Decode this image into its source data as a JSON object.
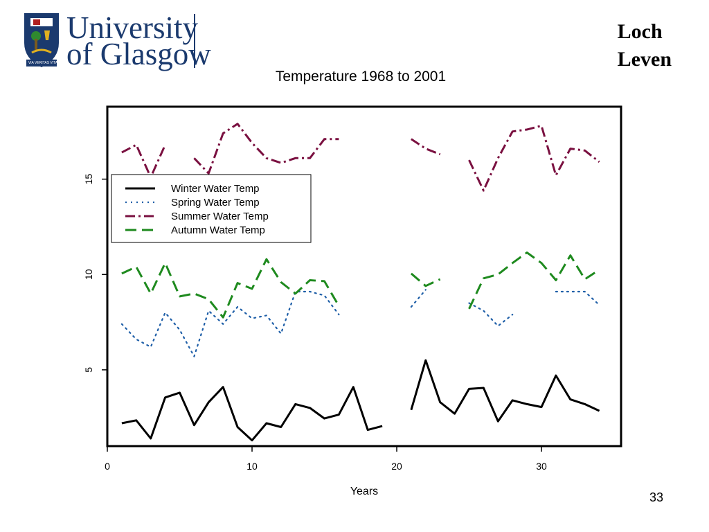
{
  "header": {
    "logo_line1": "University",
    "logo_line2": "of Glasgow",
    "logo_motto": "VIA VERITAS VITA",
    "slide_title_line1": "Loch",
    "slide_title_line2": "Leven"
  },
  "footer": {
    "page_number": "33"
  },
  "chart_data": {
    "type": "line",
    "title": "Temperature 1968 to 2001",
    "xlabel": "Years",
    "ylabel": "",
    "xlim": [
      0,
      35.5
    ],
    "ylim": [
      1.0,
      18.8
    ],
    "xticks": [
      0,
      10,
      20,
      30
    ],
    "yticks": [
      5,
      10,
      15
    ],
    "grid": false,
    "legend_position": "top-left",
    "series": [
      {
        "name": "Winter Water Temp",
        "style": "solid",
        "color": "#000000",
        "x": [
          1,
          2,
          3,
          4,
          5,
          6,
          7,
          8,
          9,
          10,
          11,
          12,
          13,
          14,
          15,
          16,
          17,
          18,
          19,
          20,
          21,
          22,
          23,
          24,
          25,
          26,
          27,
          28,
          29,
          30,
          31,
          32,
          33,
          34
        ],
        "y": [
          2.2,
          2.35,
          1.4,
          3.55,
          3.8,
          2.1,
          3.3,
          4.1,
          2.0,
          1.3,
          2.2,
          2.0,
          3.2,
          3.0,
          2.45,
          2.65,
          4.1,
          1.85,
          2.05,
          null,
          2.9,
          5.5,
          3.3,
          2.7,
          4.0,
          4.05,
          2.3,
          3.4,
          3.2,
          3.05,
          4.7,
          3.45,
          3.2,
          2.85
        ]
      },
      {
        "name": "Spring Water Temp",
        "style": "dotted",
        "color": "#1f5fa8",
        "x": [
          1,
          2,
          3,
          4,
          5,
          6,
          7,
          8,
          9,
          10,
          11,
          12,
          13,
          14,
          15,
          16,
          17,
          18,
          19,
          20,
          21,
          22,
          23,
          24,
          25,
          26,
          27,
          28,
          29,
          30,
          31,
          32,
          33,
          34
        ],
        "y": [
          7.4,
          6.6,
          6.2,
          8.0,
          7.1,
          5.7,
          8.1,
          7.4,
          8.3,
          7.7,
          7.85,
          6.9,
          9.1,
          9.1,
          8.9,
          7.9,
          null,
          null,
          null,
          null,
          8.3,
          9.2,
          null,
          null,
          8.5,
          8.1,
          7.3,
          7.9,
          null,
          null,
          9.1,
          9.1,
          9.1,
          8.4
        ]
      },
      {
        "name": "Summer Water Temp",
        "style": "dashdot",
        "color": "#7a1040",
        "x": [
          1,
          2,
          3,
          4,
          5,
          6,
          7,
          8,
          9,
          10,
          11,
          12,
          13,
          14,
          15,
          16,
          17,
          18,
          19,
          20,
          21,
          22,
          23,
          24,
          25,
          26,
          27,
          28,
          29,
          30,
          31,
          32,
          33,
          34
        ],
        "y": [
          16.4,
          16.8,
          15.1,
          16.8,
          null,
          16.1,
          15.3,
          17.4,
          17.9,
          16.9,
          16.1,
          15.85,
          16.1,
          16.1,
          17.1,
          17.1,
          null,
          null,
          null,
          null,
          17.1,
          16.6,
          16.3,
          null,
          16.0,
          14.4,
          16.1,
          17.5,
          17.6,
          17.8,
          15.2,
          16.6,
          16.5,
          15.9
        ]
      },
      {
        "name": "Autumn Water Temp",
        "style": "dashed",
        "color": "#1e8a1e",
        "x": [
          1,
          2,
          3,
          4,
          5,
          6,
          7,
          8,
          9,
          10,
          11,
          12,
          13,
          14,
          15,
          16,
          17,
          18,
          19,
          20,
          21,
          22,
          23,
          24,
          25,
          26,
          27,
          28,
          29,
          30,
          31,
          32,
          33,
          34
        ],
        "y": [
          10.05,
          10.4,
          9.0,
          10.6,
          8.85,
          9.0,
          8.7,
          7.75,
          9.55,
          9.25,
          10.8,
          9.6,
          9.0,
          9.7,
          9.65,
          8.35,
          null,
          null,
          null,
          null,
          10.05,
          9.4,
          9.75,
          null,
          8.2,
          9.8,
          10.0,
          10.6,
          11.15,
          10.6,
          9.7,
          11.0,
          9.75,
          10.25
        ]
      }
    ]
  }
}
